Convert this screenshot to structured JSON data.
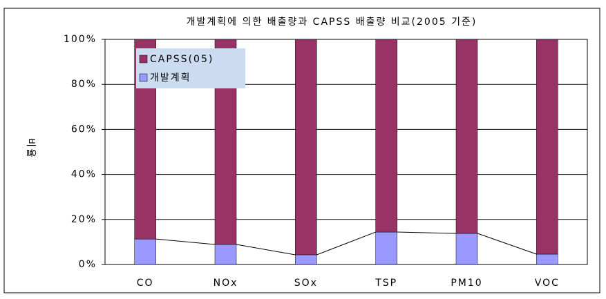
{
  "chart_data": {
    "type": "stacked-bar",
    "title": "개발계획에 의한 배출량과 CAPSS 배출량 비교(2005 기준)",
    "y_label": "비율",
    "categories": [
      "CO",
      "NOx",
      "SOx",
      "TSP",
      "PM10",
      "VOC"
    ],
    "series": [
      {
        "name": "개발계획",
        "color": "#9999ff",
        "values": [
          11.3,
          8.9,
          4.3,
          14.4,
          13.8,
          4.6
        ]
      },
      {
        "name": "CAPSS(05)",
        "color": "#993366",
        "values": [
          88.7,
          91.1,
          95.7,
          85.6,
          86.2,
          95.4
        ]
      }
    ],
    "ylim": [
      0,
      100
    ],
    "yticks": [
      {
        "value": 0,
        "label": "0%"
      },
      {
        "value": 20,
        "label": "20%"
      },
      {
        "value": 40,
        "label": "40%"
      },
      {
        "value": 60,
        "label": "60%"
      },
      {
        "value": 80,
        "label": "80%"
      },
      {
        "value": 100,
        "label": "100%"
      }
    ],
    "grid": true,
    "series_lines": true,
    "legend": "upper-left"
  }
}
